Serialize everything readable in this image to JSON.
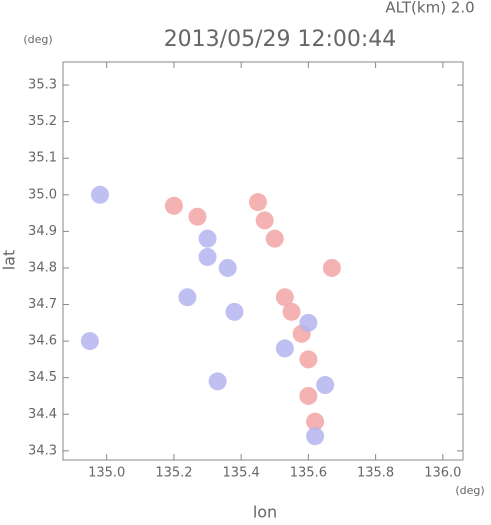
{
  "chart_data": {
    "type": "scatter",
    "title": "2013/05/29 12:00:44",
    "subtitle": "ALT(km) 2.0",
    "y_unit": "(deg)",
    "x_unit": "(deg)",
    "xlabel": "lon",
    "ylabel": "lat",
    "xlim": [
      134.87,
      136.06
    ],
    "ylim": [
      34.275,
      35.363
    ],
    "xticks": [
      {
        "value": 135,
        "label": "135.0"
      },
      135.2,
      135.4,
      135.6,
      135.8,
      {
        "value": 136,
        "label": "136.0"
      }
    ],
    "yticks": [
      34.3,
      34.4,
      34.5,
      34.6,
      34.7,
      34.8,
      34.9,
      {
        "value": 35,
        "label": "35.0"
      },
      35.1,
      35.2,
      35.3
    ],
    "series": [
      {
        "color": "#f2a4a4",
        "x": [
          135.45,
          135.47,
          135.2,
          135.27,
          135.5,
          135.55,
          135.58,
          135.6,
          135.6,
          135.62,
          135.53,
          135.67
        ],
        "y": [
          34.98,
          34.93,
          34.97,
          34.94,
          34.88,
          34.68,
          34.62,
          34.55,
          34.45,
          34.38,
          34.72,
          34.8
        ]
      },
      {
        "color": "#b4b4ef",
        "x": [
          134.98,
          135.3,
          135.36,
          135.24,
          135.38,
          134.95,
          135.33,
          135.6,
          135.65,
          135.62,
          135.53,
          135.3
        ],
        "y": [
          35.0,
          34.83,
          34.8,
          34.72,
          34.68,
          34.6,
          34.49,
          34.65,
          34.48,
          34.34,
          34.58,
          34.88
        ]
      }
    ]
  }
}
